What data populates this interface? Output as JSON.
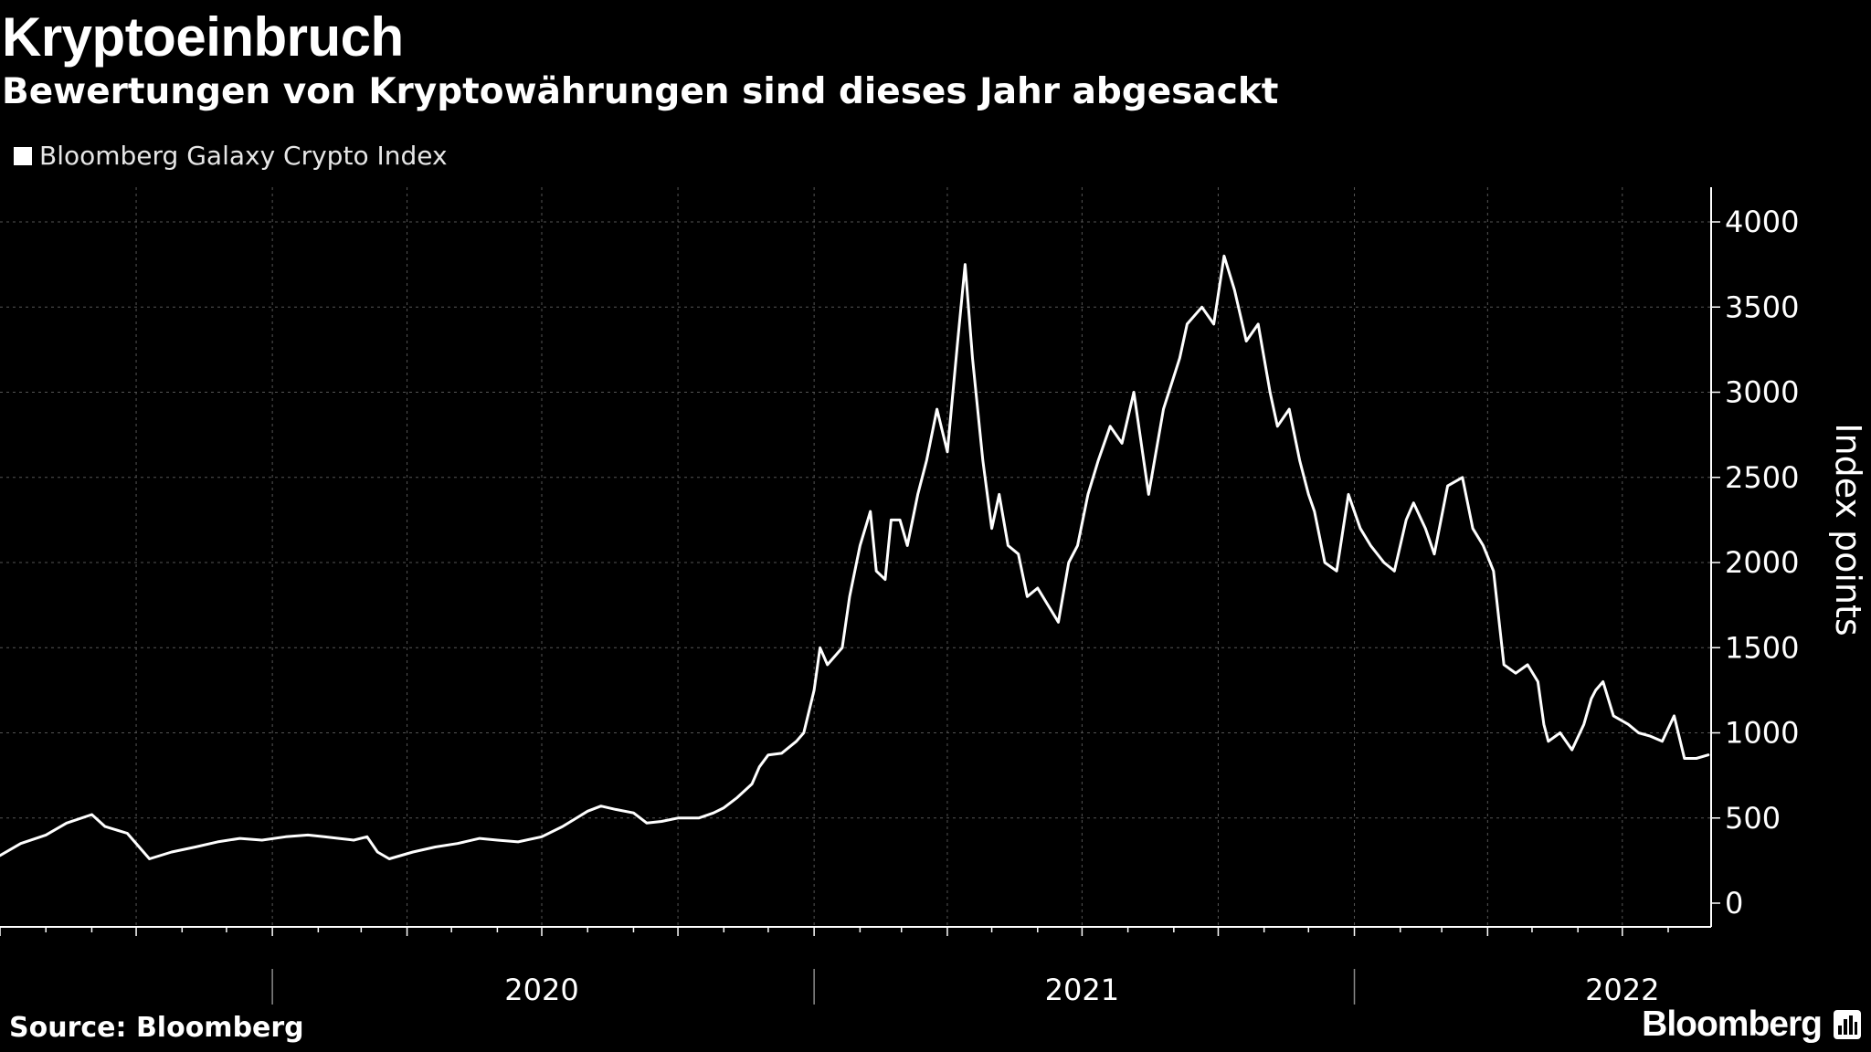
{
  "title": "Kryptoeinbruch",
  "subtitle": "Bewertungen von Kryptowährungen sind dieses Jahr abgesackt",
  "legend": {
    "label": "Bloomberg Galaxy Crypto Index"
  },
  "source": "Source: Bloomberg",
  "brand": {
    "name": "Bloomberg",
    "icon": "bloomberg-terminal-icon"
  },
  "colors": {
    "background": "#000000",
    "line": "#ffffff",
    "grid": "#555555",
    "text": "#ffffff"
  },
  "chart_data": {
    "type": "line",
    "title": "Kryptoeinbruch",
    "subtitle": "Bewertungen von Kryptowährungen sind dieses Jahr abgesackt",
    "xlabel": "",
    "ylabel": "Index points",
    "ylim": [
      0,
      4000
    ],
    "yticks": [
      0,
      500,
      1000,
      1500,
      2000,
      2500,
      3000,
      3500,
      4000
    ],
    "xlim": [
      "2019-07-01",
      "2022-08-30"
    ],
    "year_labels": [
      {
        "label": "2020",
        "x": "2020-07-01"
      },
      {
        "label": "2021",
        "x": "2021-07-01"
      },
      {
        "label": "2022",
        "x": "2022-07-01"
      }
    ],
    "grid": true,
    "legend_position": "top-left",
    "series": [
      {
        "name": "Bloomberg Galaxy Crypto Index",
        "x": [
          "2019-07-01",
          "2019-07-15",
          "2019-08-01",
          "2019-08-15",
          "2019-09-01",
          "2019-09-10",
          "2019-09-25",
          "2019-10-10",
          "2019-10-25",
          "2019-11-10",
          "2019-11-25",
          "2019-12-10",
          "2019-12-25",
          "2020-01-10",
          "2020-01-25",
          "2020-02-05",
          "2020-02-15",
          "2020-02-25",
          "2020-03-05",
          "2020-03-12",
          "2020-03-20",
          "2020-04-05",
          "2020-04-20",
          "2020-05-05",
          "2020-05-20",
          "2020-06-01",
          "2020-06-15",
          "2020-07-01",
          "2020-07-15",
          "2020-08-01",
          "2020-08-10",
          "2020-08-20",
          "2020-09-01",
          "2020-09-10",
          "2020-09-20",
          "2020-10-01",
          "2020-10-15",
          "2020-10-25",
          "2020-11-01",
          "2020-11-10",
          "2020-11-20",
          "2020-11-25",
          "2020-12-01",
          "2020-12-10",
          "2020-12-20",
          "2020-12-25",
          "2021-01-01",
          "2021-01-05",
          "2021-01-10",
          "2021-01-15",
          "2021-01-20",
          "2021-01-25",
          "2021-02-01",
          "2021-02-08",
          "2021-02-12",
          "2021-02-18",
          "2021-02-22",
          "2021-02-28",
          "2021-03-05",
          "2021-03-12",
          "2021-03-18",
          "2021-03-25",
          "2021-04-01",
          "2021-04-08",
          "2021-04-13",
          "2021-04-18",
          "2021-04-25",
          "2021-05-01",
          "2021-05-06",
          "2021-05-12",
          "2021-05-19",
          "2021-05-25",
          "2021-06-01",
          "2021-06-08",
          "2021-06-15",
          "2021-06-22",
          "2021-06-28",
          "2021-07-05",
          "2021-07-12",
          "2021-07-20",
          "2021-07-28",
          "2021-08-05",
          "2021-08-15",
          "2021-08-25",
          "2021-09-05",
          "2021-09-10",
          "2021-09-20",
          "2021-09-28",
          "2021-10-05",
          "2021-10-12",
          "2021-10-20",
          "2021-10-28",
          "2021-11-05",
          "2021-11-10",
          "2021-11-18",
          "2021-11-25",
          "2021-12-01",
          "2021-12-05",
          "2021-12-12",
          "2021-12-20",
          "2021-12-28",
          "2022-01-05",
          "2022-01-12",
          "2022-01-21",
          "2022-01-28",
          "2022-02-05",
          "2022-02-10",
          "2022-02-18",
          "2022-02-24",
          "2022-03-05",
          "2022-03-15",
          "2022-03-22",
          "2022-03-29",
          "2022-04-05",
          "2022-04-12",
          "2022-04-20",
          "2022-04-28",
          "2022-05-05",
          "2022-05-09",
          "2022-05-12",
          "2022-05-20",
          "2022-05-28",
          "2022-06-05",
          "2022-06-10",
          "2022-06-13",
          "2022-06-18",
          "2022-06-25",
          "2022-07-05",
          "2022-07-12",
          "2022-07-20",
          "2022-07-28",
          "2022-08-05",
          "2022-08-12",
          "2022-08-20",
          "2022-08-28"
        ],
        "y": [
          280,
          350,
          400,
          470,
          520,
          450,
          410,
          260,
          300,
          330,
          360,
          380,
          370,
          390,
          400,
          390,
          380,
          370,
          390,
          300,
          260,
          300,
          330,
          350,
          380,
          370,
          360,
          390,
          450,
          540,
          570,
          550,
          530,
          470,
          480,
          500,
          500,
          530,
          560,
          620,
          700,
          800,
          870,
          880,
          950,
          1000,
          1250,
          1500,
          1400,
          1450,
          1500,
          1800,
          2100,
          2300,
          1950,
          1900,
          2250,
          2250,
          2100,
          2400,
          2600,
          2900,
          2650,
          3300,
          3750,
          3200,
          2600,
          2200,
          2400,
          2100,
          2050,
          1800,
          1850,
          1750,
          1650,
          2000,
          2100,
          2400,
          2600,
          2800,
          2700,
          3000,
          2400,
          2900,
          3200,
          3400,
          3500,
          3400,
          3800,
          3600,
          3300,
          3400,
          3000,
          2800,
          2900,
          2600,
          2400,
          2300,
          2000,
          1950,
          2400,
          2200,
          2100,
          2000,
          1950,
          2250,
          2350,
          2200,
          2050,
          2450,
          2500,
          2200,
          2100,
          1950,
          1400,
          1350,
          1400,
          1300,
          1050,
          950,
          1000,
          900,
          1050,
          1200,
          1250,
          1300,
          1100,
          1050,
          1000,
          980,
          950,
          1100,
          850,
          850,
          870
        ]
      }
    ]
  }
}
